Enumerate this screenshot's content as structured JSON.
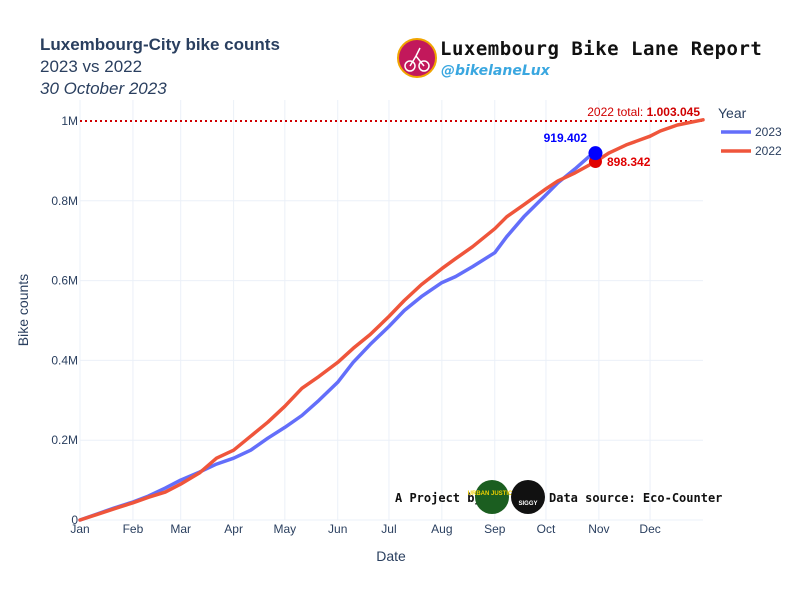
{
  "header": {
    "title": "Luxembourg-City bike counts",
    "subtitle": "2023 vs 2022",
    "date": "30 October 2023"
  },
  "brand": {
    "title": "Luxembourg Bike Lane Report",
    "handle": "@bikelaneLux"
  },
  "credits": {
    "project_label": "A Project by:",
    "source_label": "Data source: Eco-Counter",
    "logo1_text": "URBAN JUSTICE",
    "logo2_text": "SIGGY"
  },
  "colors": {
    "series_2023": "#636efa",
    "series_2022": "#ef553b",
    "marker_2023": "#0000ff",
    "marker_2022": "#e00000",
    "total_line": "#d00000",
    "grid": "#ebf0f8",
    "text": "#2a3f5f"
  },
  "chart_data": {
    "type": "line",
    "xlabel": "Date",
    "ylabel": "Bike counts",
    "ylim": [
      0,
      1003045
    ],
    "yticks": [
      0,
      200000,
      400000,
      600000,
      800000,
      1000000
    ],
    "ytick_labels": [
      "0",
      "0.2M",
      "0.4M",
      "0.6M",
      "0.8M",
      "1M"
    ],
    "xlim": [
      0,
      365
    ],
    "xticks": [
      0,
      31,
      59,
      90,
      120,
      151,
      181,
      212,
      243,
      273,
      304,
      334
    ],
    "xtick_labels": [
      "Jan",
      "Feb",
      "Mar",
      "Apr",
      "May",
      "Jun",
      "Jul",
      "Aug",
      "Sep",
      "Oct",
      "Nov",
      "Dec"
    ],
    "legend_title": "Year",
    "legend_position": "top-right",
    "grid": true,
    "series": [
      {
        "name": "2023",
        "x": [
          0,
          10,
          20,
          31,
          40,
          50,
          59,
          70,
          80,
          90,
          100,
          110,
          120,
          130,
          140,
          151,
          160,
          170,
          181,
          190,
          200,
          212,
          220,
          230,
          243,
          250,
          260,
          273,
          280,
          290,
          298,
          302
        ],
        "y": [
          0,
          15000,
          30000,
          45000,
          60000,
          80000,
          100000,
          120000,
          140000,
          155000,
          175000,
          205000,
          232000,
          262000,
          300000,
          345000,
          395000,
          440000,
          485000,
          525000,
          560000,
          595000,
          610000,
          635000,
          670000,
          710000,
          760000,
          815000,
          845000,
          880000,
          910000,
          919402
        ]
      },
      {
        "name": "2022",
        "x": [
          0,
          10,
          20,
          31,
          40,
          50,
          59,
          70,
          80,
          90,
          100,
          110,
          120,
          130,
          140,
          151,
          160,
          170,
          181,
          190,
          200,
          212,
          220,
          230,
          243,
          250,
          260,
          273,
          280,
          290,
          302,
          310,
          320,
          334,
          340,
          350,
          365
        ],
        "y": [
          0,
          14000,
          28000,
          43000,
          57000,
          70000,
          90000,
          118000,
          155000,
          175000,
          210000,
          245000,
          285000,
          330000,
          360000,
          395000,
          430000,
          465000,
          510000,
          550000,
          590000,
          630000,
          655000,
          685000,
          730000,
          760000,
          790000,
          830000,
          850000,
          870000,
          898342,
          920000,
          940000,
          962000,
          975000,
          990000,
          1003045
        ]
      }
    ],
    "annotations": {
      "total_label": "2022 total: ",
      "total_value": "1.003.045",
      "point_2023_label": "919.402",
      "point_2022_label": "898.342"
    }
  }
}
